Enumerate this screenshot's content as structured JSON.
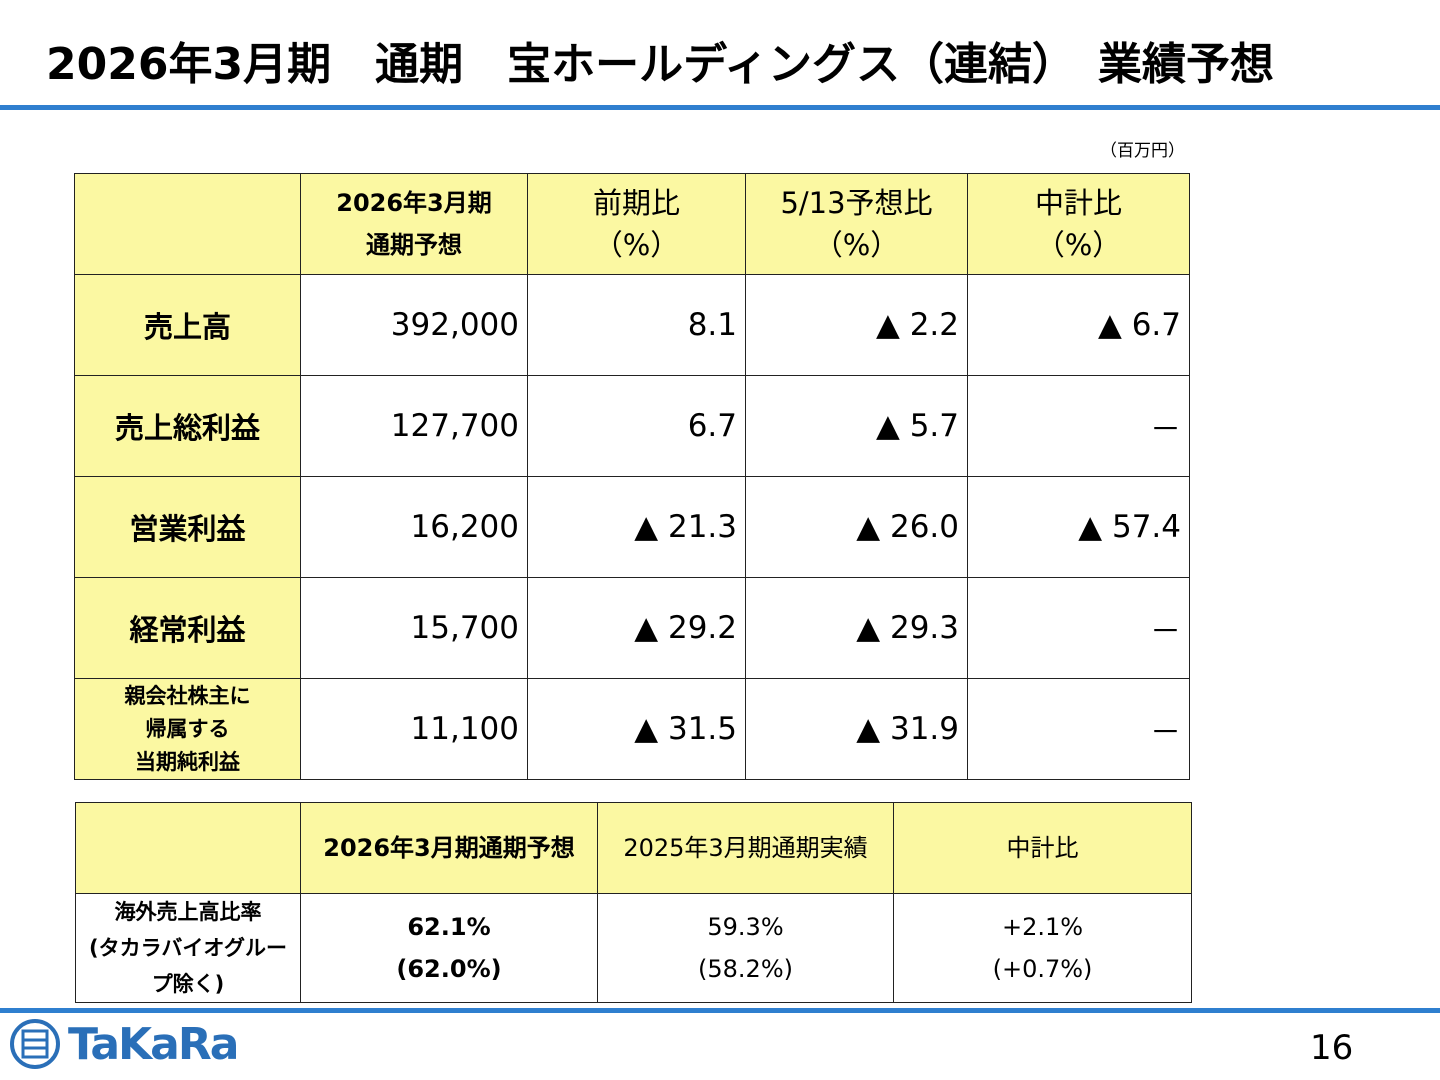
{
  "header": {
    "title": "2026年3月期　通期　宝ホールディングス（連結）　業績予想"
  },
  "unit": "（百万円）",
  "table": {
    "rows": [
      [
        "",
        "2026年3月期\n通期予想",
        "前期比\n（%）",
        "5/13予想比\n（%）",
        "中計比\n（%）"
      ],
      [
        "売上高",
        "392,000",
        "8.1",
        "▲ 2.2",
        "▲ 6.7"
      ],
      [
        "売上総利益",
        "127,700",
        "6.7",
        "▲ 5.7",
        "－"
      ],
      [
        "営業利益",
        "16,200",
        "▲ 21.3",
        "▲ 26.0",
        "▲ 57.4"
      ],
      [
        "経常利益",
        "15,700",
        "▲ 29.2",
        "▲ 29.3",
        "－"
      ],
      [
        "親会社株主に\n帰属する\n当期純利益",
        "11,100",
        "▲ 31.5",
        "▲ 31.9",
        "－"
      ]
    ]
  },
  "table2": {
    "rows": [
      [
        "",
        "2026年3月期通期予想",
        "2025年3月期通期実績",
        "中計比"
      ],
      [
        "海外売上高比率\n(タカラバイオグループ除く)",
        "62.1%\n(62.0%)",
        "59.3%\n(58.2%)",
        "+2.1%\n(+0.7%)"
      ]
    ]
  },
  "footer": {
    "logo": "TaKaRa",
    "page": "16"
  }
}
